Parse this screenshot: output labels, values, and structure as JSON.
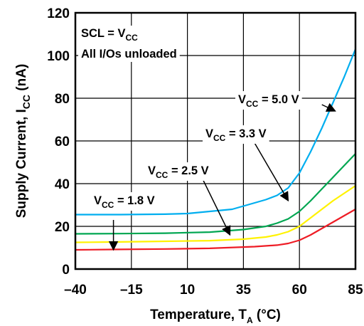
{
  "chart_data": {
    "type": "line",
    "title": "",
    "xlabel": {
      "main": "Temperature, T",
      "sub": "A",
      "unit": " (°C)"
    },
    "ylabel": {
      "main": "Supply Current, I",
      "sub": "CC",
      "unit": " (nA)"
    },
    "xlim": [
      -40,
      85
    ],
    "ylim": [
      0,
      120
    ],
    "x_ticks": [
      -40,
      -15,
      10,
      35,
      60,
      85
    ],
    "x_tick_labels": [
      "–40",
      "–15",
      "10",
      "35",
      "60",
      "85"
    ],
    "y_ticks": [
      0,
      20,
      40,
      60,
      80,
      100,
      120
    ],
    "grid": true,
    "conditions": [
      {
        "main": "SCL = V",
        "sub": "CC"
      },
      {
        "main": "All I/Os unloaded",
        "sub": ""
      }
    ],
    "series": [
      {
        "name": "VCC = 1.8 V",
        "label": {
          "pre": "V",
          "sub": "CC",
          "post": " = 1.8 V"
        },
        "color": "#ee1c25",
        "x": [
          -40,
          -20,
          0,
          20,
          40,
          50,
          55,
          60,
          65,
          70,
          75,
          80,
          85
        ],
        "y": [
          9,
          9.2,
          9.4,
          9.7,
          10.5,
          11.2,
          12,
          13.5,
          16,
          19,
          22,
          25,
          28
        ]
      },
      {
        "name": "VCC = 2.5 V",
        "label": {
          "pre": "V",
          "sub": "CC",
          "post": " = 2.5 V"
        },
        "color": "#fff200",
        "x": [
          -40,
          -20,
          0,
          20,
          35,
          45,
          50,
          55,
          60,
          65,
          70,
          75,
          80,
          85
        ],
        "y": [
          12.5,
          12.7,
          13,
          13.3,
          14,
          15,
          16,
          17.5,
          20,
          24,
          28,
          32,
          35.5,
          39
        ]
      },
      {
        "name": "VCC = 3.3 V",
        "label": {
          "pre": "V",
          "sub": "CC",
          "post": " = 3.3 V"
        },
        "color": "#00a651",
        "x": [
          -40,
          -20,
          0,
          20,
          35,
          45,
          50,
          55,
          60,
          65,
          70,
          75,
          80,
          85
        ],
        "y": [
          16.5,
          16.6,
          16.8,
          17.3,
          18.5,
          20,
          21.5,
          23.5,
          27,
          32,
          37.5,
          43,
          48.5,
          54
        ]
      },
      {
        "name": "VCC = 5.0 V",
        "label": {
          "pre": "V",
          "sub": "CC",
          "post": " = 5.0 V"
        },
        "color": "#00aeef",
        "x": [
          -40,
          -20,
          0,
          10,
          20,
          30,
          35,
          40,
          45,
          50,
          55,
          60,
          65,
          70,
          75,
          80,
          85
        ],
        "y": [
          25.5,
          25.5,
          25.7,
          26,
          27,
          28,
          29.5,
          31,
          32.5,
          34.5,
          38,
          45,
          55,
          66,
          78,
          90,
          103
        ]
      }
    ],
    "annotations": [
      {
        "series": 3,
        "arrow_from": [
          70,
          77
        ],
        "arrow_to": [
          76,
          74
        ]
      },
      {
        "series": 2,
        "arrow_from": [
          40,
          59
        ],
        "arrow_to": [
          55,
          32
        ]
      },
      {
        "series": 1,
        "arrow_from": [
          15,
          46
        ],
        "arrow_to": [
          29,
          16
        ]
      },
      {
        "series": 0,
        "arrow_from": [
          -23,
          23
        ],
        "arrow_to": [
          -23,
          9
        ]
      }
    ]
  }
}
